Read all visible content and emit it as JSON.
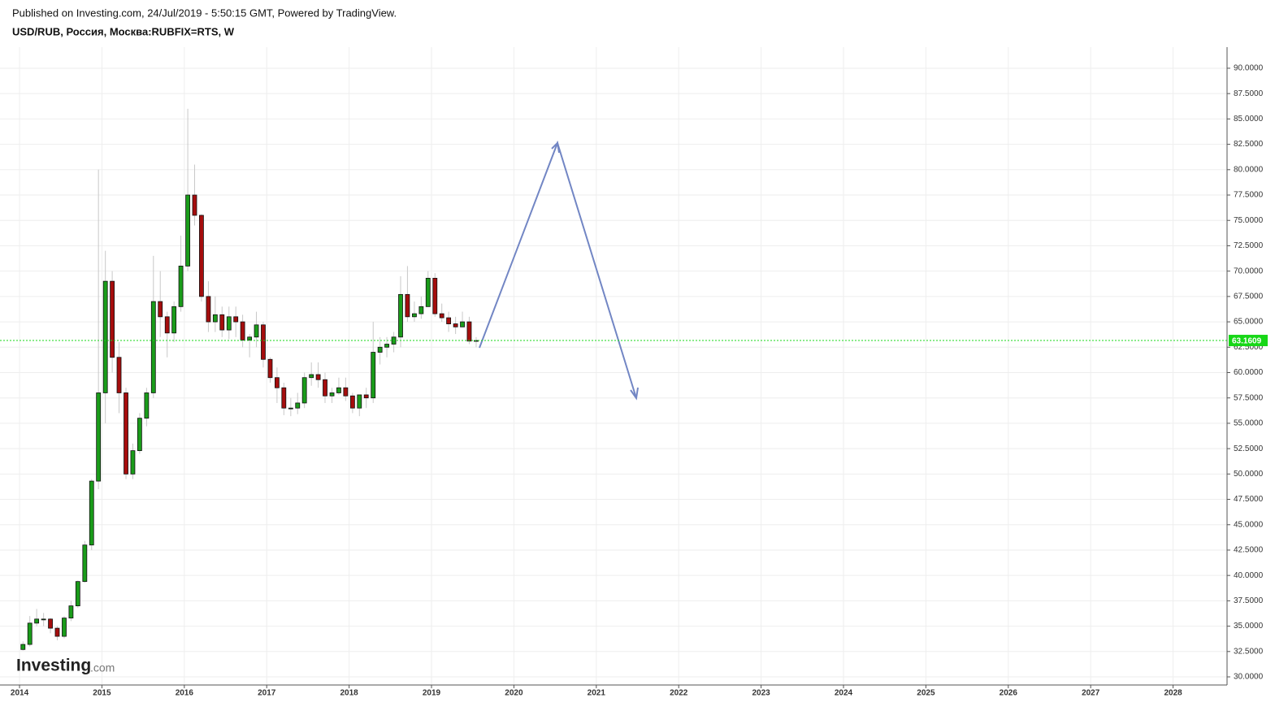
{
  "header": {
    "published": "Published on Investing.com, 24/Jul/2019 - 5:50:15 GMT, Powered by TradingView.",
    "symbol": "USD/RUB, Россия, Москва:RUBFIX=RTS, W"
  },
  "logo": {
    "name": "Investing",
    "suffix": ".com"
  },
  "chart_data": {
    "type": "candlestick",
    "x": [
      2014.042,
      2014.125,
      2014.208,
      2014.292,
      2014.375,
      2014.458,
      2014.542,
      2014.625,
      2014.708,
      2014.792,
      2014.875,
      2014.958,
      2015.042,
      2015.125,
      2015.208,
      2015.292,
      2015.375,
      2015.458,
      2015.542,
      2015.625,
      2015.708,
      2015.792,
      2015.875,
      2015.958,
      2016.042,
      2016.125,
      2016.208,
      2016.292,
      2016.375,
      2016.458,
      2016.542,
      2016.625,
      2016.708,
      2016.792,
      2016.875,
      2016.958,
      2017.042,
      2017.125,
      2017.208,
      2017.292,
      2017.375,
      2017.458,
      2017.542,
      2017.625,
      2017.708,
      2017.792,
      2017.875,
      2017.958,
      2018.042,
      2018.125,
      2018.208,
      2018.292,
      2018.375,
      2018.458,
      2018.542,
      2018.625,
      2018.708,
      2018.792,
      2018.875,
      2018.958,
      2019.042,
      2019.125,
      2019.208,
      2019.292,
      2019.375,
      2019.458,
      2019.542
    ],
    "open": [
      32.7,
      33.2,
      35.3,
      35.7,
      35.7,
      34.8,
      34,
      35.8,
      37,
      39.4,
      43,
      49.3,
      58,
      69,
      61.5,
      58,
      50,
      52.3,
      55.5,
      58,
      67,
      65.5,
      63.9,
      66.5,
      70.5,
      77.5,
      75.5,
      67.5,
      65,
      65.7,
      64.2,
      65.5,
      65,
      63.2,
      63.5,
      64.7,
      61.3,
      59.5,
      58.5,
      56.5,
      56.5,
      57,
      59.5,
      59.8,
      59.3,
      57.7,
      58,
      58.5,
      57.7,
      56.5,
      57.8,
      57.5,
      62,
      62.5,
      62.8,
      63.5,
      67.7,
      65.5,
      65.8,
      66.5,
      69.3,
      65.8,
      65.4,
      64.8,
      64.5,
      65,
      63.1
    ],
    "high": [
      33.5,
      36,
      36.7,
      36.3,
      35.8,
      35,
      36,
      37.5,
      39.5,
      43.4,
      49.5,
      80,
      72,
      70,
      63,
      58.5,
      53,
      56,
      58.5,
      71.5,
      70,
      66,
      67,
      73.5,
      86,
      80.5,
      75.6,
      69,
      67.5,
      66.5,
      66.5,
      66.5,
      65.7,
      63.8,
      66,
      65,
      61.5,
      60.5,
      59,
      57.5,
      58,
      60,
      61,
      61,
      60,
      58.5,
      59.5,
      59.5,
      58,
      57.8,
      58.5,
      65,
      63.5,
      63.5,
      64,
      69.5,
      70.5,
      67,
      67.5,
      70,
      69.8,
      66.8,
      66,
      65.5,
      66,
      65.5,
      63.5
    ],
    "low": [
      32.6,
      33,
      35,
      35,
      34.3,
      33.6,
      33.8,
      35.5,
      36.8,
      39.3,
      42.5,
      48.5,
      55,
      60,
      56,
      49.5,
      49.5,
      52,
      54.7,
      57.5,
      63.5,
      61.5,
      63,
      66,
      70,
      74.5,
      67,
      64,
      64,
      63.5,
      63.3,
      63.5,
      62.5,
      61.5,
      62.5,
      60.5,
      59,
      57,
      55.8,
      55.7,
      55.9,
      56.5,
      58.7,
      58.5,
      57,
      57,
      57.8,
      57.2,
      56,
      55.7,
      56.5,
      57,
      60.8,
      61.5,
      62,
      62.5,
      65,
      65,
      65.3,
      66.5,
      65.5,
      65,
      64,
      63.8,
      64.5,
      62.8,
      62.5
    ],
    "close": [
      33.2,
      35.3,
      35.7,
      35.7,
      34.8,
      34,
      35.8,
      37,
      39.4,
      43,
      49.3,
      58,
      69,
      61.5,
      58,
      50,
      52.3,
      55.5,
      58,
      67,
      65.5,
      63.9,
      66.5,
      70.5,
      77.5,
      75.5,
      67.5,
      65,
      65.7,
      64.2,
      65.5,
      65,
      63.2,
      63.5,
      64.7,
      61.3,
      59.5,
      58.5,
      56.5,
      56.5,
      57,
      59.5,
      59.8,
      59.3,
      57.7,
      58,
      58.5,
      57.7,
      56.5,
      57.8,
      57.5,
      62,
      62.5,
      62.8,
      63.5,
      67.7,
      65.5,
      65.8,
      66.5,
      69.3,
      65.8,
      65.4,
      64.8,
      64.5,
      65,
      63.1,
      63.16
    ],
    "up_color": "#1a9c1a",
    "down_color": "#a50d0d",
    "wick_color": "#c8c8c8",
    "last_price": 63.1609,
    "last_price_color": "#17d717",
    "xlim": [
      2013.763,
      2028.655
    ],
    "xticks": [
      2014,
      2015,
      2016,
      2017,
      2018,
      2019,
      2020,
      2021,
      2022,
      2023,
      2024,
      2025,
      2026,
      2027,
      2028
    ],
    "ylim": [
      29.2,
      92.08
    ],
    "yticks": [
      {
        "value": 30,
        "label": "30.0000"
      },
      {
        "value": 32.5,
        "label": "32.5000"
      },
      {
        "value": 35,
        "label": "35.0000"
      },
      {
        "value": 37.5,
        "label": "37.5000"
      },
      {
        "value": 40,
        "label": "40.0000"
      },
      {
        "value": 42.5,
        "label": "42.5000"
      },
      {
        "value": 45,
        "label": "45.0000"
      },
      {
        "value": 47.5,
        "label": "47.5000"
      },
      {
        "value": 50,
        "label": "50.0000"
      },
      {
        "value": 52.5,
        "label": "52.5000"
      },
      {
        "value": 55,
        "label": "55.0000"
      },
      {
        "value": 57.5,
        "label": "57.5000"
      },
      {
        "value": 60,
        "label": "60.0000"
      },
      {
        "value": 62.5,
        "label": "62.5000"
      },
      {
        "value": 65,
        "label": "65.0000"
      },
      {
        "value": 67.5,
        "label": "67.5000"
      },
      {
        "value": 70,
        "label": "70.0000"
      },
      {
        "value": 72.5,
        "label": "72.5000"
      },
      {
        "value": 75,
        "label": "75.0000"
      },
      {
        "value": 77.5,
        "label": "77.5000"
      },
      {
        "value": 80,
        "label": "80.0000"
      },
      {
        "value": 82.5,
        "label": "82.5000"
      },
      {
        "value": 85,
        "label": "85.0000"
      },
      {
        "value": 87.5,
        "label": "87.5000"
      },
      {
        "value": 90,
        "label": "90.0000"
      }
    ],
    "grid": true
  }
}
